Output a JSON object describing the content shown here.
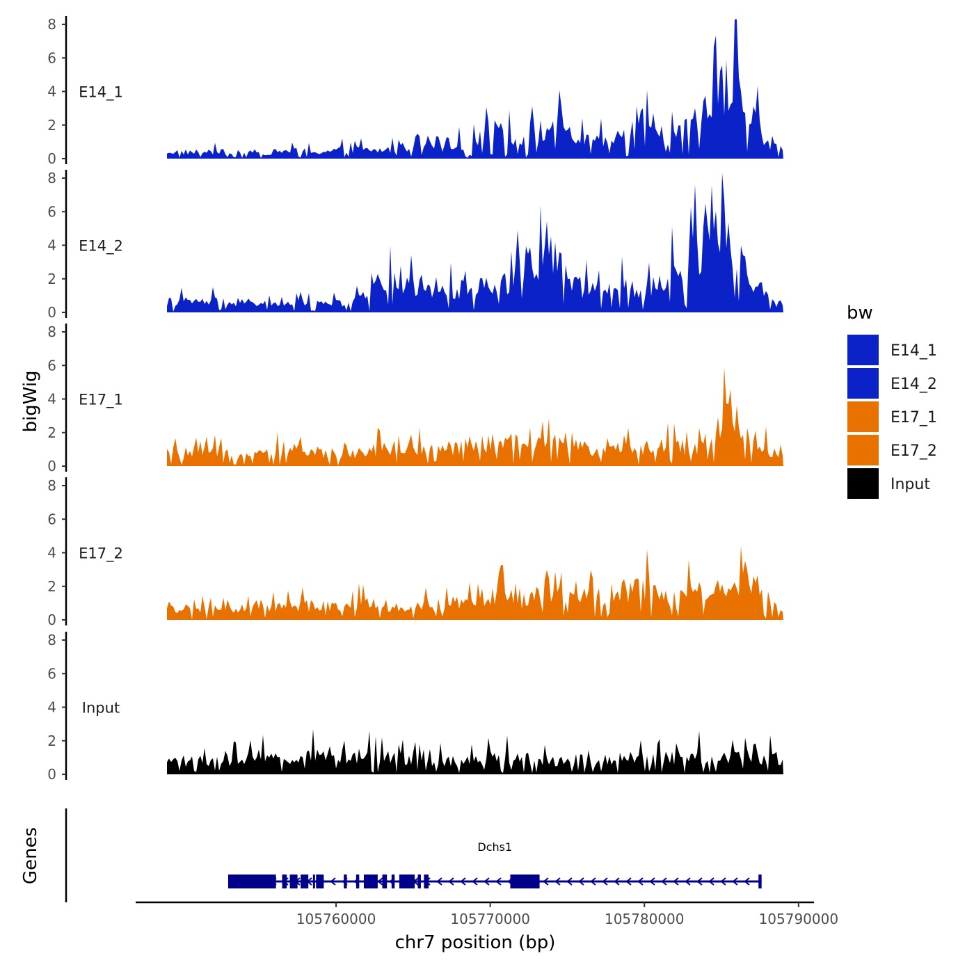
{
  "chart_data": {
    "type": "area",
    "title": "",
    "ylabel": "bigWig",
    "xlabel": "chr7 position (bp)",
    "genes_label": "Genes",
    "xlim": [
      105747000,
      105791000
    ],
    "ylim": [
      0,
      8.5
    ],
    "y_ticks": [
      "0",
      "2",
      "4",
      "6",
      "8"
    ],
    "x_ticks": [
      {
        "value": 105760000,
        "label": "105760000"
      },
      {
        "value": 105770000,
        "label": "105770000"
      },
      {
        "value": 105780000,
        "label": "105780000"
      },
      {
        "value": 105790000,
        "label": "105790000"
      }
    ],
    "legend": {
      "title": "bw",
      "entries": [
        {
          "label": "E14_1",
          "color": "#0a22c8"
        },
        {
          "label": "E14_2",
          "color": "#0a22c8"
        },
        {
          "label": "E17_1",
          "color": "#e87100"
        },
        {
          "label": "E17_2",
          "color": "#e87100"
        },
        {
          "label": "Input",
          "color": "#000000"
        }
      ]
    },
    "series": [
      {
        "name": "E14_1",
        "color": "#0a22c8",
        "x": [
          105753000,
          105755000,
          105757000,
          105759000,
          105761000,
          105763000,
          105765000,
          105767000,
          105769000,
          105770500,
          105772000,
          105774000,
          105775500,
          105777000,
          105779000,
          105780000,
          105781500,
          105783000,
          105784500,
          105785000,
          105785800,
          105786300,
          105787000,
          105788000,
          105789000,
          105789700
        ],
        "y": [
          0.5,
          0.4,
          0.6,
          0.5,
          0.7,
          0.6,
          1.0,
          0.9,
          1.1,
          2.6,
          1.2,
          2.5,
          1.5,
          1.2,
          1.8,
          4.0,
          1.5,
          2.2,
          4.5,
          5.0,
          6.6,
          3.5,
          3.5,
          1.0,
          0.6,
          0.1
        ]
      },
      {
        "name": "E14_2",
        "color": "#0a22c8",
        "x": [
          105753000,
          105755000,
          105757000,
          105759000,
          105760500,
          105762000,
          105763500,
          105765000,
          105767000,
          105769000,
          105771000,
          105772500,
          105774000,
          105775500,
          105777000,
          105778500,
          105780000,
          105781500,
          105783000,
          105784500,
          105785000,
          105785500,
          105786500,
          105787500,
          105788500,
          105789700
        ],
        "y": [
          0.8,
          0.7,
          0.6,
          0.8,
          0.6,
          1.2,
          3.0,
          1.8,
          1.5,
          1.9,
          2.2,
          4.4,
          4.0,
          2.0,
          1.6,
          1.8,
          1.5,
          2.5,
          3.5,
          7.5,
          7.8,
          5.0,
          3.0,
          2.0,
          0.5,
          1.3
        ]
      },
      {
        "name": "E17_1",
        "color": "#e87100",
        "x": [
          105753000,
          105755000,
          105757000,
          105759000,
          105761000,
          105763000,
          105765000,
          105767000,
          105769000,
          105770500,
          105772000,
          105774000,
          105775500,
          105777000,
          105779000,
          105780500,
          105782000,
          105783500,
          105784500,
          105785500,
          105786500,
          105787500,
          105788500,
          105789700
        ],
        "y": [
          1.0,
          0.9,
          1.2,
          1.0,
          0.9,
          1.4,
          1.3,
          1.3,
          1.6,
          1.8,
          1.7,
          1.6,
          1.9,
          1.1,
          1.3,
          1.5,
          1.4,
          1.5,
          2.0,
          4.5,
          2.8,
          1.5,
          1.0,
          0.2
        ]
      },
      {
        "name": "E17_2",
        "color": "#e87100",
        "x": [
          105753000,
          105755000,
          105757000,
          105759000,
          105761000,
          105763000,
          105765000,
          105767000,
          105769000,
          105770500,
          105772000,
          105774000,
          105775500,
          105777000,
          105779000,
          105780500,
          105782000,
          105783500,
          105784500,
          105785500,
          105786500,
          105787500,
          105788500,
          105789700
        ],
        "y": [
          0.8,
          0.9,
          1.0,
          1.1,
          1.2,
          1.1,
          0.9,
          1.2,
          1.4,
          2.1,
          1.4,
          2.3,
          1.6,
          1.8,
          2.2,
          2.4,
          1.5,
          2.5,
          2.4,
          2.8,
          3.2,
          2.2,
          1.0,
          0.4
        ]
      },
      {
        "name": "Input",
        "color": "#000000",
        "x": [
          105753000,
          105755000,
          105757000,
          105759000,
          105761000,
          105763000,
          105765000,
          105767000,
          105769000,
          105770500,
          105772000,
          105774000,
          105775500,
          105777000,
          105779000,
          105780500,
          105782000,
          105783500,
          105784500,
          105785500,
          105786500,
          105787500,
          105788500,
          105789700
        ],
        "y": [
          1.0,
          1.3,
          1.2,
          1.6,
          1.3,
          1.5,
          1.2,
          1.0,
          1.1,
          1.3,
          1.2,
          1.0,
          1.1,
          1.0,
          1.2,
          1.1,
          1.3,
          1.4,
          0.9,
          1.3,
          1.4,
          1.2,
          1.3,
          0.2
        ]
      }
    ],
    "gene": {
      "name": "Dchs1",
      "strand": "-",
      "start": 105753000,
      "end": 105787600,
      "color": "#00008b",
      "exons": [
        [
          105753000,
          105756100
        ],
        [
          105756500,
          105756800
        ],
        [
          105757000,
          105757500
        ],
        [
          105757700,
          105758200
        ],
        [
          105758500,
          105758600
        ],
        [
          105758700,
          105759200
        ],
        [
          105760500,
          105760700
        ],
        [
          105761300,
          105761500
        ],
        [
          105761800,
          105762700
        ],
        [
          105763000,
          105763300
        ],
        [
          105763600,
          105763800
        ],
        [
          105764100,
          105765100
        ],
        [
          105765300,
          105765500
        ],
        [
          105765700,
          105766000
        ],
        [
          105771300,
          105773200
        ],
        [
          105787400,
          105787600
        ]
      ]
    }
  }
}
